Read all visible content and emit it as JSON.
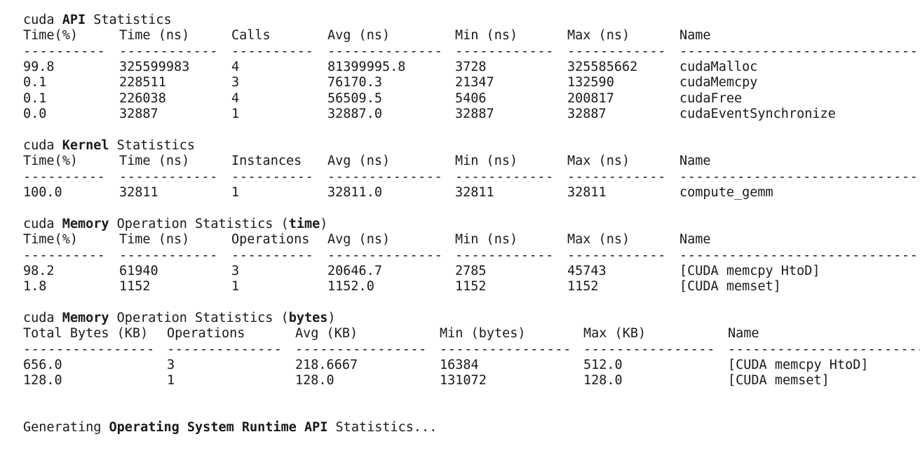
{
  "sections": [
    {
      "title": {
        "prefix": "cuda ",
        "bold": "API",
        "suffix": " Statistics",
        "bold2": "",
        "suffix2": ""
      },
      "headers": [
        "Time(%)",
        "Time (ns)",
        "Calls",
        "Avg (ns)",
        "Min (ns)",
        "Max (ns)",
        "Name"
      ],
      "rows": [
        [
          "99.8",
          "325599983",
          "4",
          "81399995.8",
          "3728",
          "325585662",
          "cudaMalloc"
        ],
        [
          "0.1",
          "228511",
          "3",
          "76170.3",
          "21347",
          "132590",
          "cudaMemcpy"
        ],
        [
          "0.1",
          "226038",
          "4",
          "56509.5",
          "5406",
          "200817",
          "cudaFree"
        ],
        [
          "0.0",
          "32887",
          "1",
          "32887.0",
          "32887",
          "32887",
          "cudaEventSynchronize"
        ]
      ]
    },
    {
      "title": {
        "prefix": "cuda ",
        "bold": "Kernel",
        "suffix": " Statistics",
        "bold2": "",
        "suffix2": ""
      },
      "headers": [
        "Time(%)",
        "Time (ns)",
        "Instances",
        "Avg (ns)",
        "Min (ns)",
        "Max (ns)",
        "Name"
      ],
      "rows": [
        [
          "100.0",
          "32811",
          "1",
          "32811.0",
          "32811",
          "32811",
          "compute_gemm"
        ]
      ]
    },
    {
      "title": {
        "prefix": "cuda ",
        "bold": "Memory",
        "suffix": " Operation Statistics (",
        "bold2": "time",
        "suffix2": ")"
      },
      "headers": [
        "Time(%)",
        "Time (ns)",
        "Operations",
        "Avg (ns)",
        "Min (ns)",
        "Max (ns)",
        "Name"
      ],
      "rows": [
        [
          "98.2",
          "61940",
          "3",
          "20646.7",
          "2785",
          "45743",
          "[CUDA memcpy HtoD]"
        ],
        [
          "1.8",
          "1152",
          "1",
          "1152.0",
          "1152",
          "1152",
          "[CUDA memset]"
        ]
      ]
    },
    {
      "title": {
        "prefix": "cuda ",
        "bold": "Memory",
        "suffix": " Operation Statistics (",
        "bold2": "bytes",
        "suffix2": ")"
      },
      "headers": [
        "Total Bytes (KB)",
        "Operations",
        "Avg (KB)",
        "Min (bytes)",
        "Max (KB)",
        "Name"
      ],
      "rows": [
        [
          "656.0",
          "3",
          "218.6667",
          "16384",
          "512.0",
          "[CUDA memcpy HtoD]"
        ],
        [
          "128.0",
          "1",
          "128.0",
          "131072",
          "128.0",
          "[CUDA memset]"
        ]
      ]
    }
  ],
  "footer": {
    "prefix": "Generating ",
    "bold": "Operating System Runtime API",
    "suffix": " Statistics..."
  }
}
